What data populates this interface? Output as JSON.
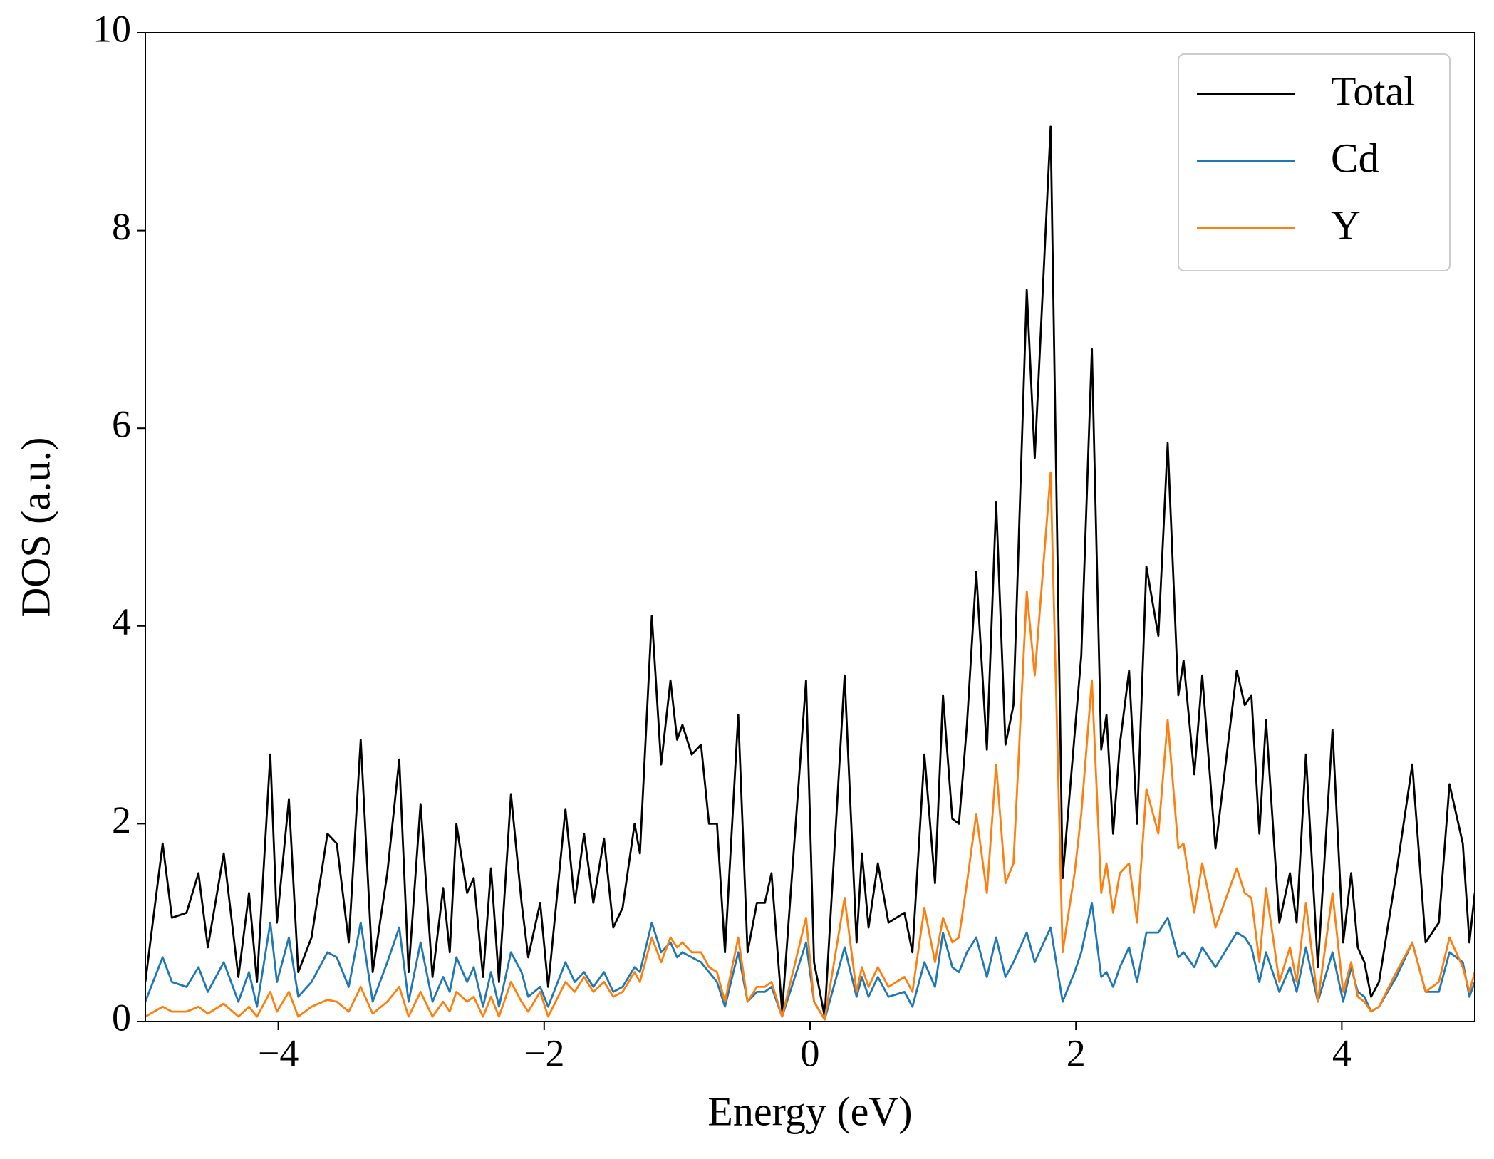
{
  "chart_data": {
    "type": "line",
    "xlabel": "Energy (eV)",
    "ylabel": "DOS (a.u.)",
    "xlim": [
      -5,
      5
    ],
    "ylim": [
      0,
      10
    ],
    "xticks": [
      {
        "value": -4,
        "label": "−4"
      },
      {
        "value": -2,
        "label": "−2"
      },
      0,
      2,
      4
    ],
    "yticks": [
      0,
      2,
      4,
      6,
      8,
      10
    ],
    "legend": "upper right",
    "x": [
      -5.0,
      -4.87,
      -4.8,
      -4.69,
      -4.6,
      -4.53,
      -4.41,
      -4.3,
      -4.22,
      -4.16,
      -4.06,
      -4.01,
      -3.92,
      -3.85,
      -3.75,
      -3.63,
      -3.56,
      -3.47,
      -3.38,
      -3.29,
      -3.18,
      -3.09,
      -3.02,
      -2.93,
      -2.84,
      -2.76,
      -2.71,
      -2.66,
      -2.58,
      -2.53,
      -2.46,
      -2.4,
      -2.34,
      -2.25,
      -2.17,
      -2.12,
      -2.03,
      -1.97,
      -1.84,
      -1.77,
      -1.7,
      -1.63,
      -1.55,
      -1.48,
      -1.41,
      -1.32,
      -1.28,
      -1.19,
      -1.12,
      -1.05,
      -1.0,
      -0.96,
      -0.89,
      -0.82,
      -0.76,
      -0.7,
      -0.64,
      -0.54,
      -0.47,
      -0.4,
      -0.34,
      -0.29,
      -0.21,
      -0.03,
      0.03,
      0.11,
      0.26,
      0.35,
      0.39,
      0.44,
      0.51,
      0.59,
      0.71,
      0.77,
      0.86,
      0.94,
      1.0,
      1.07,
      1.12,
      1.18,
      1.25,
      1.33,
      1.4,
      1.47,
      1.53,
      1.63,
      1.69,
      1.81,
      1.9,
      1.99,
      2.04,
      2.12,
      2.19,
      2.23,
      2.28,
      2.33,
      2.4,
      2.46,
      2.53,
      2.62,
      2.69,
      2.77,
      2.81,
      2.89,
      2.95,
      3.05,
      3.21,
      3.27,
      3.32,
      3.38,
      3.43,
      3.53,
      3.61,
      3.66,
      3.73,
      3.82,
      3.93,
      4.01,
      4.07,
      4.12,
      4.17,
      4.22,
      4.28,
      4.41,
      4.53,
      4.63,
      4.73,
      4.81,
      4.91,
      4.96,
      5.0
    ],
    "series": [
      {
        "name": "Total",
        "color": "#000000",
        "values": [
          0.4,
          1.8,
          1.05,
          1.1,
          1.5,
          0.75,
          1.7,
          0.45,
          1.3,
          0.4,
          2.7,
          1.0,
          2.25,
          0.5,
          0.85,
          1.9,
          1.8,
          0.8,
          2.85,
          0.5,
          1.5,
          2.65,
          0.5,
          2.2,
          0.45,
          1.35,
          0.7,
          2.0,
          1.3,
          1.45,
          0.45,
          1.55,
          0.4,
          2.3,
          1.2,
          0.65,
          1.2,
          0.35,
          2.15,
          1.2,
          1.9,
          1.2,
          1.85,
          0.95,
          1.15,
          2.0,
          1.7,
          4.1,
          2.6,
          3.45,
          2.85,
          3.0,
          2.7,
          2.8,
          2.0,
          2.0,
          0.7,
          3.1,
          0.7,
          1.2,
          1.2,
          1.5,
          0.1,
          3.45,
          0.6,
          0.05,
          3.5,
          0.8,
          1.7,
          0.95,
          1.6,
          1.0,
          1.1,
          0.7,
          2.7,
          1.4,
          3.3,
          2.05,
          2.0,
          3.0,
          4.55,
          2.75,
          5.25,
          2.8,
          3.2,
          7.4,
          5.7,
          9.05,
          1.45,
          2.9,
          3.7,
          6.8,
          2.75,
          3.1,
          1.9,
          2.8,
          3.55,
          2.0,
          4.6,
          3.9,
          5.85,
          3.3,
          3.65,
          2.5,
          3.5,
          1.75,
          3.55,
          3.2,
          3.3,
          1.9,
          3.05,
          1.0,
          1.5,
          1.0,
          2.7,
          0.55,
          2.95,
          0.8,
          1.5,
          0.75,
          0.6,
          0.25,
          0.4,
          1.5,
          2.6,
          0.8,
          1.0,
          2.4,
          1.8,
          0.8,
          1.3
        ]
      },
      {
        "name": "Cd",
        "color": "#1f77b4",
        "values": [
          0.2,
          0.65,
          0.4,
          0.35,
          0.55,
          0.3,
          0.6,
          0.2,
          0.5,
          0.15,
          1.0,
          0.4,
          0.85,
          0.25,
          0.4,
          0.7,
          0.65,
          0.35,
          1.0,
          0.2,
          0.6,
          0.95,
          0.2,
          0.8,
          0.2,
          0.45,
          0.3,
          0.65,
          0.4,
          0.55,
          0.15,
          0.5,
          0.15,
          0.7,
          0.5,
          0.25,
          0.35,
          0.15,
          0.6,
          0.4,
          0.5,
          0.35,
          0.5,
          0.3,
          0.35,
          0.55,
          0.5,
          1.0,
          0.7,
          0.8,
          0.65,
          0.7,
          0.65,
          0.6,
          0.5,
          0.4,
          0.15,
          0.7,
          0.2,
          0.3,
          0.3,
          0.35,
          0.05,
          0.8,
          0.2,
          0.02,
          0.75,
          0.25,
          0.45,
          0.25,
          0.45,
          0.25,
          0.3,
          0.15,
          0.6,
          0.35,
          0.9,
          0.55,
          0.5,
          0.7,
          0.85,
          0.45,
          0.85,
          0.45,
          0.6,
          0.9,
          0.6,
          0.95,
          0.2,
          0.5,
          0.7,
          1.2,
          0.45,
          0.5,
          0.35,
          0.55,
          0.75,
          0.4,
          0.9,
          0.9,
          1.05,
          0.65,
          0.7,
          0.55,
          0.75,
          0.55,
          0.9,
          0.85,
          0.75,
          0.4,
          0.7,
          0.3,
          0.55,
          0.3,
          0.75,
          0.2,
          0.7,
          0.2,
          0.55,
          0.3,
          0.25,
          0.1,
          0.15,
          0.45,
          0.8,
          0.3,
          0.3,
          0.7,
          0.6,
          0.25,
          0.4
        ]
      },
      {
        "name": "Y",
        "color": "#ff7f0e",
        "values": [
          0.05,
          0.15,
          0.1,
          0.1,
          0.15,
          0.08,
          0.18,
          0.05,
          0.15,
          0.05,
          0.3,
          0.1,
          0.3,
          0.05,
          0.15,
          0.22,
          0.2,
          0.1,
          0.35,
          0.08,
          0.2,
          0.35,
          0.05,
          0.3,
          0.05,
          0.2,
          0.1,
          0.3,
          0.2,
          0.25,
          0.05,
          0.25,
          0.05,
          0.4,
          0.2,
          0.1,
          0.3,
          0.05,
          0.4,
          0.3,
          0.45,
          0.3,
          0.4,
          0.25,
          0.3,
          0.5,
          0.4,
          0.85,
          0.6,
          0.85,
          0.75,
          0.8,
          0.7,
          0.7,
          0.55,
          0.5,
          0.2,
          0.85,
          0.2,
          0.35,
          0.35,
          0.4,
          0.05,
          1.05,
          0.2,
          0.02,
          1.25,
          0.3,
          0.55,
          0.35,
          0.55,
          0.35,
          0.45,
          0.3,
          1.15,
          0.6,
          1.05,
          0.8,
          0.85,
          1.4,
          2.1,
          1.3,
          2.6,
          1.4,
          1.6,
          4.35,
          3.5,
          5.55,
          0.7,
          1.5,
          2.1,
          3.45,
          1.3,
          1.6,
          1.1,
          1.5,
          1.6,
          1.0,
          2.35,
          1.9,
          3.05,
          1.75,
          1.8,
          1.1,
          1.6,
          0.95,
          1.55,
          1.3,
          1.25,
          0.6,
          1.35,
          0.4,
          0.75,
          0.4,
          1.2,
          0.2,
          1.3,
          0.3,
          0.6,
          0.25,
          0.2,
          0.1,
          0.15,
          0.5,
          0.8,
          0.3,
          0.4,
          0.85,
          0.55,
          0.3,
          0.5
        ]
      }
    ]
  }
}
